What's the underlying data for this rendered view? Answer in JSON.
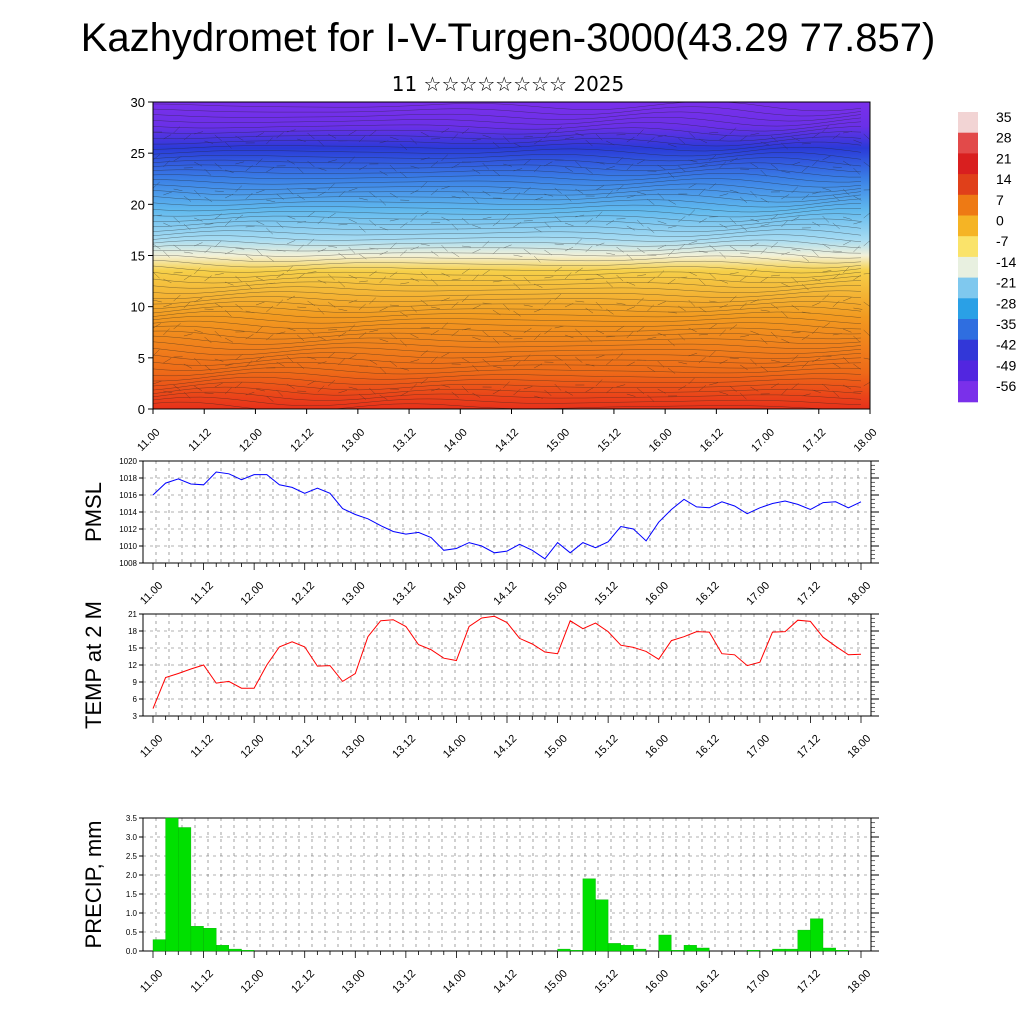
{
  "title": "Kazhydromet for I-V-Turgen-3000(43.29 77.857)",
  "subtitle": "11 ☆☆☆☆☆☆☆☆ 2025",
  "x_ticks": [
    "11.00",
    "11.12",
    "12.00",
    "12.12",
    "13.00",
    "13.12",
    "14.00",
    "14.12",
    "15.00",
    "15.12",
    "16.00",
    "16.12",
    "17.00",
    "17.12",
    "18.00"
  ],
  "colorbar": {
    "labels": [
      "35",
      "28",
      "21",
      "14",
      "7",
      "0",
      "-7",
      "-14",
      "-21",
      "-28",
      "-35",
      "-42",
      "-49",
      "-56"
    ],
    "colors": [
      "#f2d4d4",
      "#e24a4a",
      "#d91f1f",
      "#e0401a",
      "#ee7a14",
      "#f5b425",
      "#fae36a",
      "#e8f0e0",
      "#7fc8ee",
      "#2aa0e6",
      "#2f6ee0",
      "#3237d8",
      "#5226e0",
      "#7a30ea"
    ]
  },
  "chart_data": [
    {
      "type": "heatmap",
      "title": "",
      "ylabel": "",
      "ylim": [
        0,
        30
      ],
      "yticks": [
        0,
        5,
        10,
        15,
        20,
        25,
        30
      ],
      "xlim": [
        "11.00",
        "18.00"
      ],
      "x": [
        "11.00",
        "18.00"
      ],
      "levels": [
        0,
        5,
        10,
        15,
        20,
        25,
        30
      ],
      "temperature_profile_c": [
        25,
        12,
        3,
        -8,
        -35,
        -56,
        -56
      ],
      "note": ""
    },
    {
      "type": "line",
      "ylabel": "PMSL",
      "ylim": [
        1008,
        1020
      ],
      "yticks": [
        "1008",
        "1010",
        "1012",
        "1014",
        "1016",
        "1018",
        "1020"
      ],
      "color": "#0000ff",
      "x_step_hours": 3,
      "values": [
        1016.0,
        1017.4,
        1017.9,
        1017.3,
        1017.2,
        1018.7,
        1018.5,
        1017.8,
        1018.4,
        1018.4,
        1017.2,
        1016.9,
        1016.2,
        1016.8,
        1016.2,
        1014.4,
        1013.7,
        1013.2,
        1012.4,
        1011.7,
        1011.4,
        1011.6,
        1011.0,
        1009.5,
        1009.7,
        1010.4,
        1010.0,
        1009.2,
        1009.4,
        1010.2,
        1009.5,
        1008.5,
        1010.4,
        1009.2,
        1010.4,
        1009.8,
        1010.5,
        1012.3,
        1012.0,
        1010.6,
        1012.8,
        1014.3,
        1015.5,
        1014.6,
        1014.5,
        1015.2,
        1014.7,
        1013.8,
        1014.5,
        1015.0,
        1015.3,
        1014.9,
        1014.3,
        1015.1,
        1015.2,
        1014.5,
        1015.2
      ]
    },
    {
      "type": "line",
      "ylabel": "TEMP at 2 M",
      "ylim": [
        3,
        21
      ],
      "yticks": [
        "3",
        "6",
        "9",
        "12",
        "15",
        "18",
        "21"
      ],
      "color": "#ff0000",
      "x_step_hours": 3,
      "values": [
        4.3,
        9.8,
        10.5,
        11.3,
        12.0,
        8.8,
        9.1,
        7.9,
        7.9,
        12.0,
        15.2,
        16.1,
        15.2,
        11.8,
        11.9,
        9.1,
        10.5,
        17.0,
        19.8,
        20.0,
        18.8,
        15.6,
        14.7,
        13.2,
        12.8,
        18.8,
        20.3,
        20.6,
        19.5,
        16.7,
        15.7,
        14.3,
        14.0,
        19.8,
        18.4,
        19.4,
        17.9,
        15.5,
        15.1,
        14.4,
        13.0,
        16.3,
        17.0,
        17.9,
        17.8,
        14.0,
        13.8,
        11.9,
        12.5,
        17.8,
        17.9,
        19.9,
        19.7,
        16.9,
        15.3,
        13.8,
        13.9
      ]
    },
    {
      "type": "bar",
      "ylabel": "PRECIP, mm",
      "ylim": [
        0,
        3.5
      ],
      "yticks": [
        "0.0",
        "0.5",
        "1.0",
        "1.5",
        "2.0",
        "2.5",
        "3.0",
        "3.5"
      ],
      "color": "#00e000",
      "x_step_hours": 3,
      "values": [
        0.3,
        3.5,
        3.25,
        0.65,
        0.6,
        0.15,
        0.05,
        0.02,
        0,
        0,
        0,
        0,
        0,
        0,
        0,
        0,
        0,
        0,
        0,
        0,
        0,
        0,
        0,
        0,
        0,
        0,
        0,
        0,
        0,
        0,
        0,
        0,
        0.05,
        0.02,
        1.9,
        1.35,
        0.2,
        0.15,
        0.05,
        0,
        0.42,
        0.02,
        0.15,
        0.08,
        0,
        0,
        0,
        0.02,
        0,
        0.05,
        0.05,
        0.55,
        0.85,
        0.08,
        0.02,
        0,
        0
      ]
    }
  ]
}
